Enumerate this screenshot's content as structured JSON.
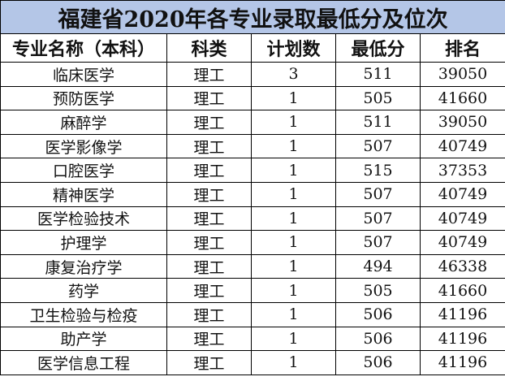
{
  "title": "福建省2020年各专业录取最低分及位次",
  "colors": {
    "title_background": "#b4c6e7"
  },
  "headers": [
    "专业名称（本科）",
    "科类",
    "计划数",
    "最低分",
    "排名"
  ],
  "rows": [
    [
      "临床医学",
      "理工",
      "3",
      "511",
      "39050"
    ],
    [
      "预防医学",
      "理工",
      "1",
      "505",
      "41660"
    ],
    [
      "麻醉学",
      "理工",
      "1",
      "511",
      "39050"
    ],
    [
      "医学影像学",
      "理工",
      "1",
      "507",
      "40749"
    ],
    [
      "口腔医学",
      "理工",
      "1",
      "515",
      "37353"
    ],
    [
      "精神医学",
      "理工",
      "1",
      "507",
      "40749"
    ],
    [
      "医学检验技术",
      "理工",
      "1",
      "507",
      "40749"
    ],
    [
      "护理学",
      "理工",
      "1",
      "507",
      "40749"
    ],
    [
      "康复治疗学",
      "理工",
      "1",
      "494",
      "46338"
    ],
    [
      "药学",
      "理工",
      "1",
      "505",
      "41660"
    ],
    [
      "卫生检验与检疫",
      "理工",
      "1",
      "506",
      "41196"
    ],
    [
      "助产学",
      "理工",
      "1",
      "506",
      "41196"
    ],
    [
      "医学信息工程",
      "理工",
      "1",
      "506",
      "41196"
    ]
  ]
}
